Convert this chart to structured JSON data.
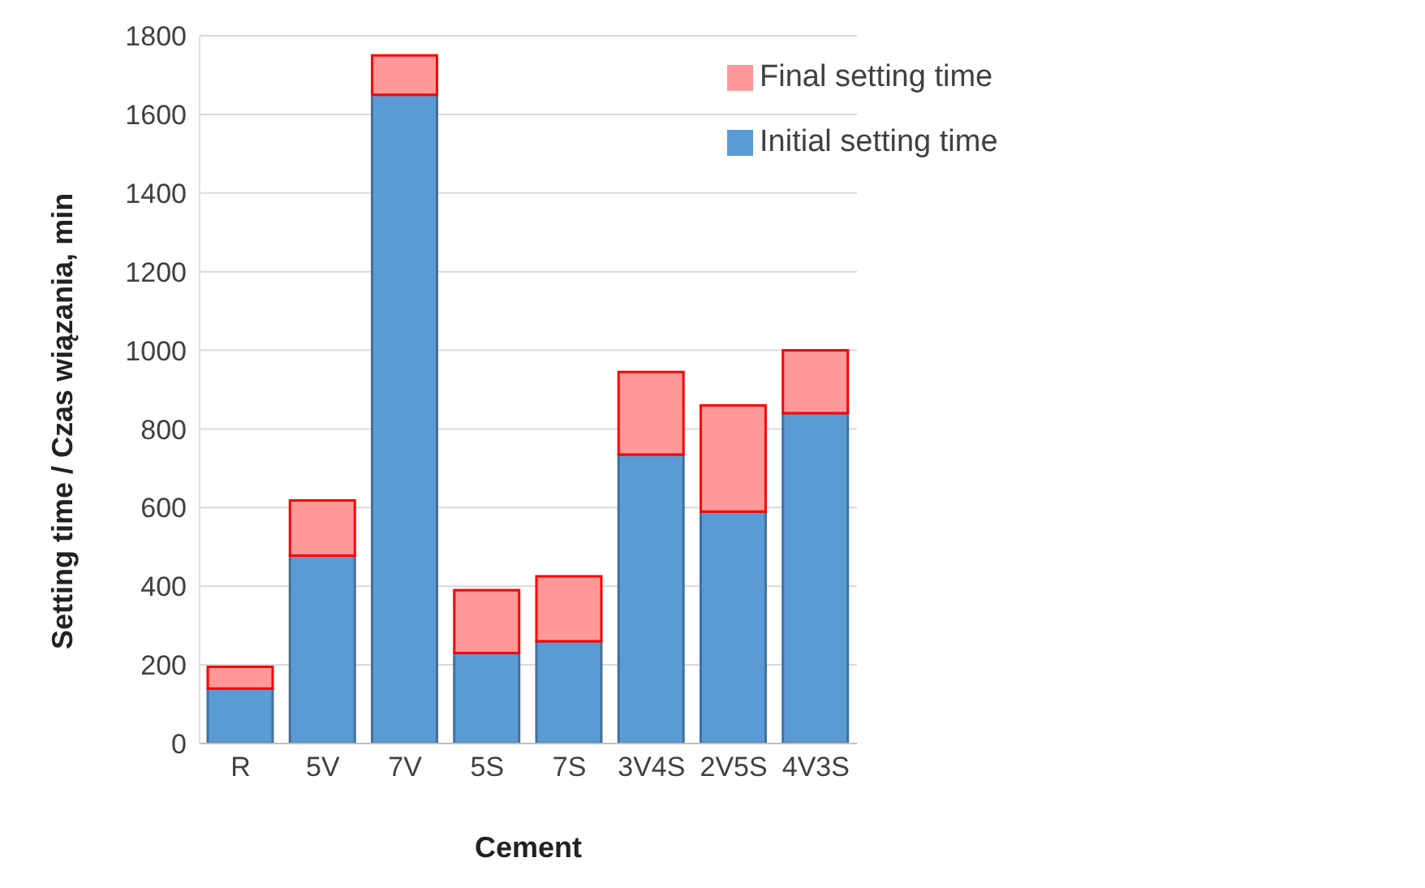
{
  "chart_data": {
    "type": "bar",
    "stacked": true,
    "xlabel": "Cement",
    "ylabel": "Setting time / Czas wiązania, min",
    "categories": [
      "R",
      "5V",
      "7V",
      "5S",
      "7S",
      "3V4S",
      "2V5S",
      "4V3S"
    ],
    "series": [
      {
        "name": "Initial setting time",
        "color": "#5b9bd5",
        "values": [
          140,
          478,
          1650,
          230,
          260,
          735,
          590,
          840
        ]
      },
      {
        "name": "Final setting time",
        "color": "#ff9999",
        "values": [
          55,
          140,
          100,
          160,
          165,
          210,
          270,
          160
        ]
      }
    ],
    "ylim": [
      0,
      1800
    ],
    "yticks": [
      0,
      200,
      400,
      600,
      800,
      1000,
      1200,
      1400,
      1600,
      1800
    ],
    "grid": "y",
    "legend": "top right"
  }
}
